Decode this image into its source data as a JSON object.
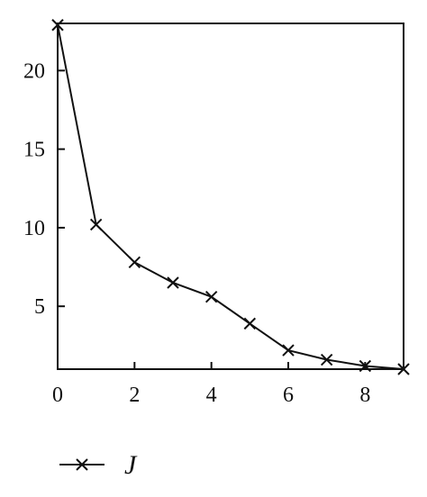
{
  "chart_data": {
    "type": "line",
    "title": "",
    "xlabel": "",
    "ylabel": "",
    "xlim": [
      0,
      9
    ],
    "ylim": [
      1,
      23
    ],
    "xticks": [
      "0",
      "2",
      "4",
      "6",
      "8"
    ],
    "yticks": [
      "5",
      "10",
      "15",
      "20"
    ],
    "grid": false,
    "legend_position": "bottom-left",
    "series": [
      {
        "name": "J",
        "marker": "x",
        "color": "#111111",
        "x": [
          0,
          1,
          2,
          3,
          4,
          5,
          6,
          7,
          8,
          9
        ],
        "y": [
          22.9,
          10.2,
          7.8,
          6.5,
          5.6,
          3.9,
          2.2,
          1.6,
          1.2,
          1.0
        ]
      }
    ]
  }
}
